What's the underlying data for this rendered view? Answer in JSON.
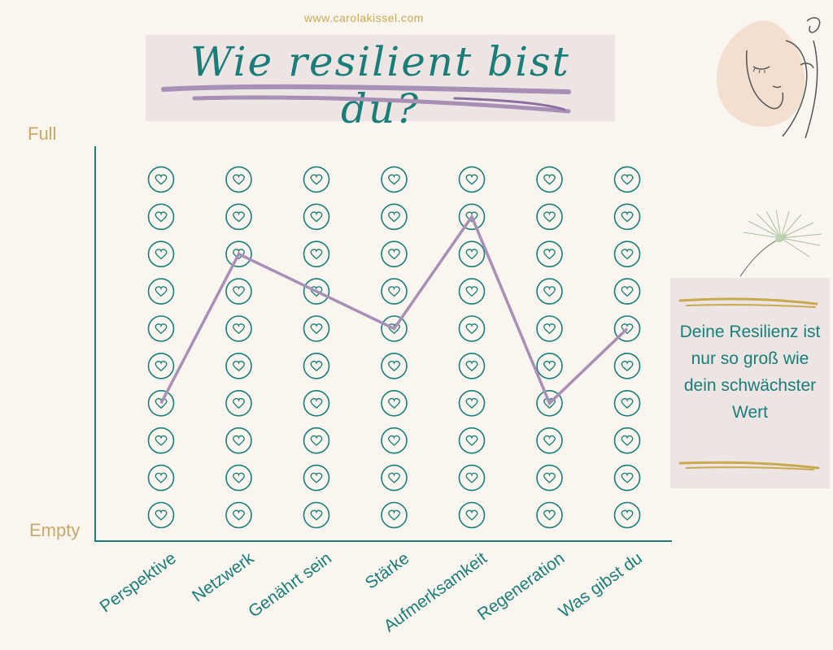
{
  "header": {
    "site_url": "www.carolakissel.com",
    "title": "Wie resilient bist du?"
  },
  "side_note": {
    "text": "Deine Resilienz ist nur so groß wie dein schwächster Wert"
  },
  "colors": {
    "teal": "#1a7d78",
    "line": "#a78fb5",
    "gold": "#c8a968",
    "box": "#ece5e3"
  },
  "icons": [
    "heart-icon",
    "face-line-art-icon",
    "dandelion-seed-icon"
  ],
  "chart_data": {
    "type": "line",
    "y_top_label": "Full",
    "y_bottom_label": "Empty",
    "ylim": [
      1,
      10
    ],
    "levels": 10,
    "categories": [
      "Perspektive",
      "Netzwerk",
      "Genährt sein",
      "Stärke",
      "Aufmerksamkeit",
      "Regeneration",
      "Was gibst du"
    ],
    "values": [
      4,
      8,
      7,
      6,
      9,
      4,
      6
    ]
  }
}
